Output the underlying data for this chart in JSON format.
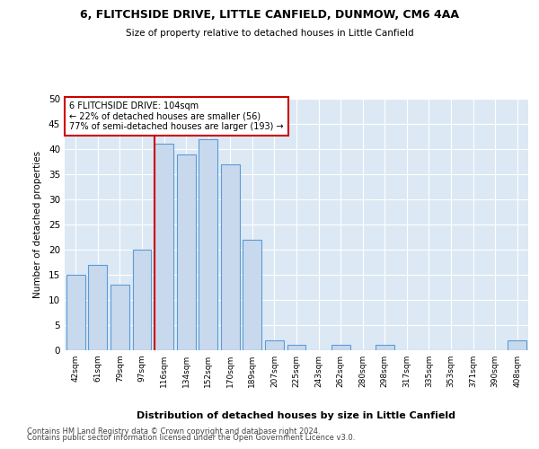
{
  "title1": "6, FLITCHSIDE DRIVE, LITTLE CANFIELD, DUNMOW, CM6 4AA",
  "title2": "Size of property relative to detached houses in Little Canfield",
  "xlabel": "Distribution of detached houses by size in Little Canfield",
  "ylabel": "Number of detached properties",
  "bar_labels": [
    "42sqm",
    "61sqm",
    "79sqm",
    "97sqm",
    "116sqm",
    "134sqm",
    "152sqm",
    "170sqm",
    "189sqm",
    "207sqm",
    "225sqm",
    "243sqm",
    "262sqm",
    "280sqm",
    "298sqm",
    "317sqm",
    "335sqm",
    "353sqm",
    "371sqm",
    "390sqm",
    "408sqm"
  ],
  "bar_values": [
    15,
    17,
    13,
    20,
    41,
    39,
    42,
    37,
    22,
    2,
    1,
    0,
    1,
    0,
    1,
    0,
    0,
    0,
    0,
    0,
    2
  ],
  "bar_color": "#c9d9ed",
  "bar_edge_color": "#5b9bd5",
  "vline_x": 3.58,
  "vline_color": "#cc0000",
  "annotation_text": "6 FLITCHSIDE DRIVE: 104sqm\n← 22% of detached houses are smaller (56)\n77% of semi-detached houses are larger (193) →",
  "annotation_box_color": "#ffffff",
  "annotation_box_edge": "#cc0000",
  "ylim": [
    0,
    50
  ],
  "yticks": [
    0,
    5,
    10,
    15,
    20,
    25,
    30,
    35,
    40,
    45,
    50
  ],
  "background_color": "#dce9f5",
  "grid_color": "#ffffff",
  "fig_background": "#ffffff",
  "footer1": "Contains HM Land Registry data © Crown copyright and database right 2024.",
  "footer2": "Contains public sector information licensed under the Open Government Licence v3.0."
}
